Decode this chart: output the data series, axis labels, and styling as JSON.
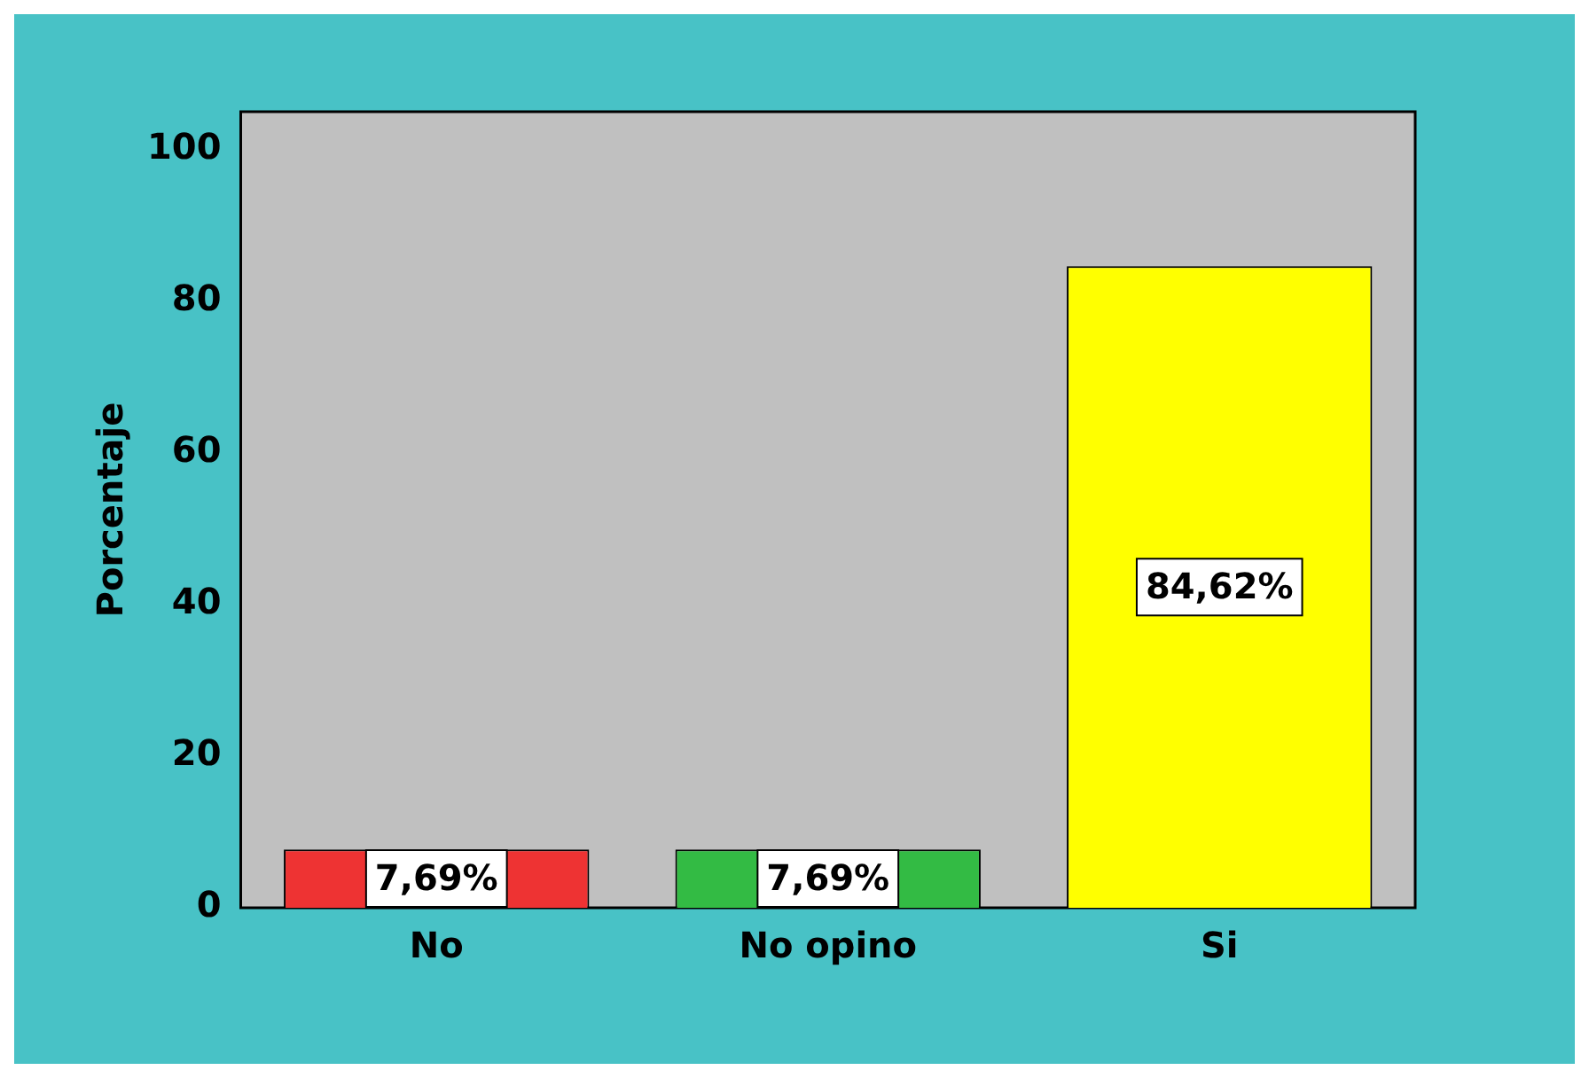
{
  "chart_data": {
    "type": "bar",
    "ylabel": "Porcentaje",
    "categories": [
      "No",
      "No opino",
      "Si"
    ],
    "values": [
      7.69,
      7.69,
      84.62
    ],
    "colors": [
      "#ee3333",
      "#33bb44",
      "#ffff00"
    ],
    "value_labels": [
      "7,69%",
      "7,69%",
      "84,62%"
    ],
    "ylim": [
      0,
      105
    ],
    "yticks": [
      0,
      20,
      40,
      60,
      80,
      100
    ],
    "grid": false,
    "legend": false
  }
}
